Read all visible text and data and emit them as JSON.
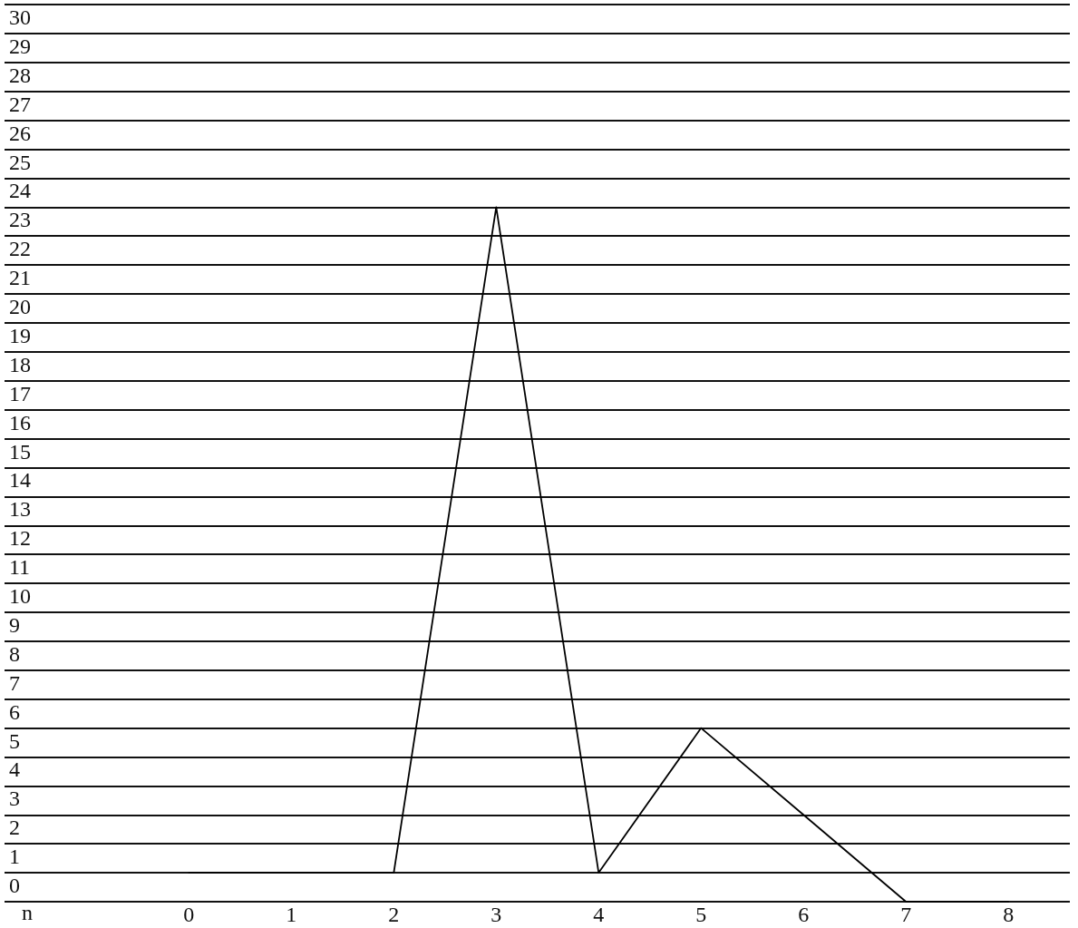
{
  "chart_data": {
    "type": "line",
    "xlabel": "n",
    "x": [
      0,
      1,
      2,
      3,
      4,
      5,
      6,
      7,
      8
    ],
    "series": [
      {
        "color": "#000000",
        "values": [
          0,
          0,
          0,
          23,
          0,
          5,
          2,
          -1,
          -1
        ]
      }
    ],
    "xlim": [
      -1.8,
      8.6
    ],
    "xticks": [
      0,
      1,
      2,
      3,
      4,
      5,
      6,
      7,
      8
    ],
    "ylim": [
      -1,
      30
    ],
    "yticks": [
      {
        "value": -1,
        "label": null
      },
      0,
      1,
      2,
      3,
      4,
      5,
      6,
      7,
      8,
      9,
      10,
      11,
      12,
      13,
      14,
      15,
      16,
      17,
      18,
      19,
      20,
      21,
      22,
      23,
      24,
      25,
      26,
      27,
      28,
      29,
      30
    ],
    "grid": "y",
    "marker": "none",
    "line_style": "solid"
  }
}
